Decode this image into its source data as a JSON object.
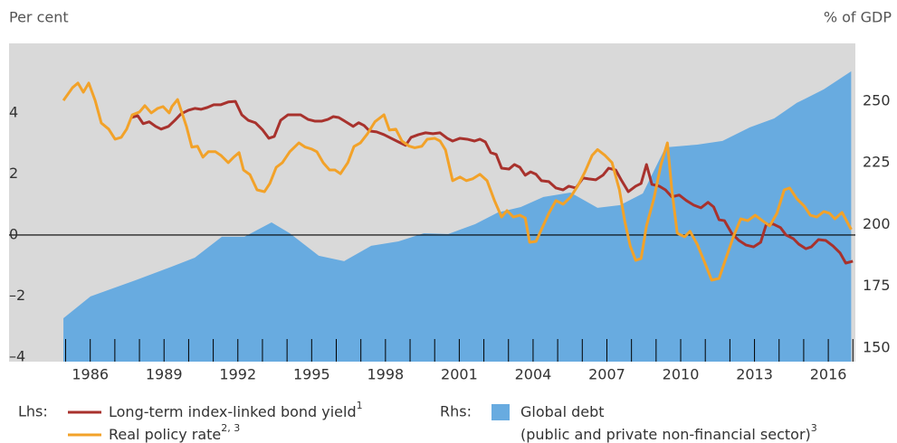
{
  "chart_data": {
    "type": "line",
    "left_axis_title": "Per cent",
    "right_axis_title": "% of GDP",
    "legend_groups": [
      "Lhs:",
      "Rhs:"
    ],
    "xlim": [
      1982.7,
      2017.1
    ],
    "xticks": [
      1986,
      1989,
      1992,
      1995,
      1998,
      2001,
      2004,
      2007,
      2010,
      2013,
      2016
    ],
    "xminorticks": [
      1985,
      1986,
      1987,
      1988,
      1989,
      1990,
      1991,
      1992,
      1993,
      1994,
      1995,
      1996,
      1997,
      1998,
      1999,
      2000,
      2001,
      2002,
      2003,
      2004,
      2005,
      2006,
      2007,
      2008,
      2009,
      2010,
      2011,
      2012,
      2013,
      2014,
      2015,
      2016,
      2017
    ],
    "ylim": [
      -4.15,
      6.28
    ],
    "yticks": [
      4,
      2,
      0,
      {
        "value": -2,
        "label": "–2"
      },
      {
        "value": -4,
        "label": "–4"
      }
    ],
    "y2lim": [
      144.5,
      273.4
    ],
    "y2ticks": [
      250,
      225,
      200,
      175,
      150
    ],
    "zero_line": true,
    "background": "#d9d9d9",
    "series": [
      {
        "name": "Global debt",
        "description": "(public and private non-financial sector)",
        "footnote": "3",
        "group": 1,
        "kind": "area",
        "axis": "y2",
        "color": "#68abe0",
        "x": [
          1984.91,
          1986.01,
          1987.85,
          1989.32,
          1990.25,
          1991.35,
          1992.27,
          1993.37,
          1994.11,
          1995.29,
          1996.32,
          1997.42,
          1998.53,
          1999.56,
          2000.55,
          2001.65,
          2002.57,
          2003.5,
          2004.42,
          2005.52,
          2006.62,
          2007.54,
          2008.46,
          2009.38,
          2010.67,
          2011.7,
          2012.81,
          2013.8,
          2014.72,
          2015.82,
          2016.93
        ],
        "values": [
          162.1,
          170.9,
          177.5,
          183.0,
          186.6,
          195.1,
          195.1,
          200.9,
          196.5,
          187.4,
          185.2,
          191.4,
          193.2,
          196.5,
          196.2,
          200.2,
          204.9,
          207.1,
          211.2,
          213.0,
          206.8,
          207.9,
          212.6,
          231.3,
          232.4,
          233.9,
          239.4,
          243.0,
          249.3,
          254.8,
          262.1
        ]
      },
      {
        "name": "Long-term index-linked bond yield",
        "footnote": "1",
        "group": 0,
        "kind": "line",
        "color": "#a8322d",
        "x": [
          1987.67,
          1987.93,
          1988.15,
          1988.4,
          1988.66,
          1988.88,
          1989.18,
          1989.44,
          1989.69,
          1989.99,
          1990.25,
          1990.5,
          1990.76,
          1991.02,
          1991.31,
          1991.61,
          1991.9,
          1992.16,
          1992.42,
          1992.71,
          1993.01,
          1993.26,
          1993.48,
          1993.74,
          1994.04,
          1994.29,
          1994.55,
          1994.85,
          1995.14,
          1995.4,
          1995.66,
          1995.88,
          1996.1,
          1996.39,
          1996.69,
          1996.91,
          1997.13,
          1997.35,
          1997.64,
          1997.94,
          1998.23,
          1998.53,
          1998.82,
          1999.04,
          1999.34,
          1999.63,
          1999.93,
          2000.22,
          2000.51,
          2000.73,
          2001.03,
          2001.32,
          2001.62,
          2001.84,
          2002.06,
          2002.28,
          2002.5,
          2002.72,
          2003.02,
          2003.24,
          2003.46,
          2003.68,
          2003.9,
          2004.12,
          2004.34,
          2004.64,
          2004.93,
          2005.22,
          2005.45,
          2005.74,
          2006.03,
          2006.26,
          2006.55,
          2006.84,
          2007.07,
          2007.36,
          2007.58,
          2007.87,
          2008.17,
          2008.39,
          2008.61,
          2008.83,
          2009.13,
          2009.38,
          2009.64,
          2009.94,
          2010.23,
          2010.53,
          2010.82,
          2011.11,
          2011.34,
          2011.56,
          2011.78,
          2012.07,
          2012.37,
          2012.66,
          2012.96,
          2013.25,
          2013.47,
          2013.76,
          2014.06,
          2014.28,
          2014.58,
          2014.8,
          2015.09,
          2015.31,
          2015.6,
          2015.9,
          2016.19,
          2016.48,
          2016.71,
          2017.0
        ],
        "values": [
          3.85,
          3.91,
          3.65,
          3.71,
          3.56,
          3.47,
          3.56,
          3.76,
          3.97,
          4.09,
          4.15,
          4.12,
          4.18,
          4.27,
          4.27,
          4.36,
          4.38,
          3.94,
          3.76,
          3.68,
          3.44,
          3.17,
          3.23,
          3.76,
          3.94,
          3.94,
          3.94,
          3.79,
          3.73,
          3.73,
          3.79,
          3.88,
          3.85,
          3.71,
          3.56,
          3.68,
          3.59,
          3.41,
          3.38,
          3.29,
          3.17,
          3.05,
          2.94,
          3.2,
          3.29,
          3.35,
          3.32,
          3.35,
          3.17,
          3.08,
          3.17,
          3.14,
          3.08,
          3.14,
          3.05,
          2.7,
          2.64,
          2.19,
          2.16,
          2.31,
          2.22,
          1.96,
          2.07,
          1.99,
          1.78,
          1.75,
          1.54,
          1.48,
          1.6,
          1.54,
          1.87,
          1.84,
          1.81,
          1.96,
          2.19,
          2.13,
          1.81,
          1.42,
          1.6,
          1.69,
          2.31,
          1.66,
          1.6,
          1.48,
          1.25,
          1.31,
          1.13,
          0.98,
          0.89,
          1.07,
          0.92,
          0.5,
          0.47,
          0.06,
          -0.18,
          -0.33,
          -0.39,
          -0.24,
          0.33,
          0.36,
          0.24,
          0.0,
          -0.12,
          -0.3,
          -0.45,
          -0.39,
          -0.15,
          -0.18,
          -0.36,
          -0.59,
          -0.92,
          -0.86
        ]
      },
      {
        "name": "Real policy rate",
        "footnote": "2, 3",
        "group": 0,
        "kind": "line",
        "color": "#f2a229",
        "x": [
          1984.91,
          1985.28,
          1985.5,
          1985.72,
          1985.94,
          1986.2,
          1986.45,
          1986.75,
          1987.01,
          1987.26,
          1987.48,
          1987.71,
          1988.0,
          1988.22,
          1988.48,
          1988.74,
          1988.96,
          1989.21,
          1989.32,
          1989.55,
          1989.73,
          1989.91,
          1990.13,
          1990.36,
          1990.58,
          1990.8,
          1991.09,
          1991.31,
          1991.61,
          1991.83,
          1992.05,
          1992.23,
          1992.49,
          1992.78,
          1993.08,
          1993.3,
          1993.56,
          1993.81,
          1994.11,
          1994.48,
          1994.74,
          1994.99,
          1995.21,
          1995.47,
          1995.73,
          1995.95,
          1996.17,
          1996.47,
          1996.72,
          1996.98,
          1997.27,
          1997.57,
          1997.94,
          1998.16,
          1998.42,
          1998.67,
          1998.97,
          1999.19,
          1999.48,
          1999.7,
          2000.0,
          2000.22,
          2000.44,
          2000.73,
          2001.03,
          2001.29,
          2001.54,
          2001.84,
          2002.13,
          2002.43,
          2002.72,
          2002.94,
          2003.2,
          2003.46,
          2003.68,
          2003.86,
          2004.12,
          2004.34,
          2004.64,
          2004.93,
          2005.22,
          2005.52,
          2005.81,
          2006.11,
          2006.4,
          2006.62,
          2006.92,
          2007.21,
          2007.51,
          2007.73,
          2007.95,
          2008.17,
          2008.39,
          2008.61,
          2008.91,
          2009.2,
          2009.46,
          2009.64,
          2009.86,
          2010.16,
          2010.38,
          2010.67,
          2010.97,
          2011.26,
          2011.56,
          2011.85,
          2012.14,
          2012.44,
          2012.73,
          2013.03,
          2013.32,
          2013.62,
          2013.91,
          2014.21,
          2014.43,
          2014.72,
          2015.02,
          2015.27,
          2015.53,
          2015.82,
          2016.05,
          2016.27,
          2016.56,
          2016.93
        ],
        "values": [
          4.41,
          4.83,
          4.98,
          4.68,
          4.98,
          4.41,
          3.67,
          3.47,
          3.14,
          3.2,
          3.47,
          3.94,
          4.03,
          4.24,
          4.0,
          4.15,
          4.21,
          4.0,
          4.21,
          4.44,
          4.0,
          3.56,
          2.88,
          2.91,
          2.55,
          2.73,
          2.73,
          2.61,
          2.37,
          2.55,
          2.7,
          2.13,
          1.98,
          1.48,
          1.42,
          1.69,
          2.22,
          2.37,
          2.73,
          3.02,
          2.88,
          2.82,
          2.73,
          2.37,
          2.13,
          2.13,
          2.01,
          2.37,
          2.9,
          3.02,
          3.32,
          3.71,
          3.94,
          3.44,
          3.47,
          3.08,
          2.91,
          2.86,
          2.91,
          3.14,
          3.17,
          3.08,
          2.79,
          1.78,
          1.9,
          1.78,
          1.84,
          1.99,
          1.78,
          1.13,
          0.59,
          0.8,
          0.59,
          0.65,
          0.56,
          -0.24,
          -0.21,
          0.18,
          0.71,
          1.13,
          1.01,
          1.24,
          1.6,
          2.07,
          2.61,
          2.8,
          2.61,
          2.37,
          1.48,
          0.44,
          -0.36,
          -0.83,
          -0.77,
          0.3,
          1.19,
          2.31,
          3.02,
          1.48,
          0.06,
          -0.06,
          0.12,
          -0.3,
          -0.89,
          -1.48,
          -1.42,
          -0.74,
          -0.06,
          0.53,
          0.47,
          0.65,
          0.47,
          0.3,
          0.71,
          1.48,
          1.54,
          1.19,
          0.95,
          0.65,
          0.59,
          0.77,
          0.71,
          0.53,
          0.74,
          0.18
        ]
      }
    ]
  }
}
